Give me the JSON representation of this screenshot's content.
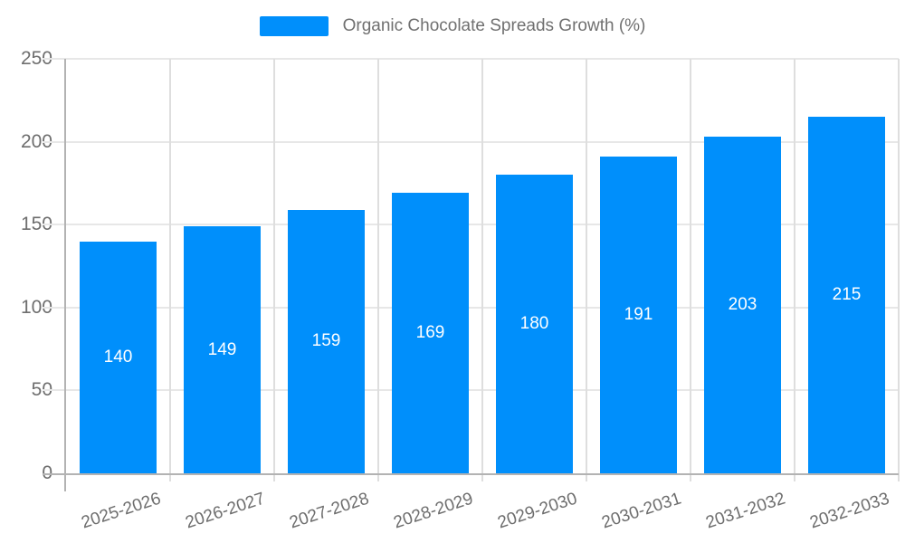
{
  "chart_data": {
    "type": "bar",
    "title": "Organic Chocolate Spreads Growth (%)",
    "categories": [
      "2025-2026",
      "2026-2027",
      "2027-2028",
      "2028-2029",
      "2029-2030",
      "2030-2031",
      "2031-2032",
      "2032-2033"
    ],
    "values": [
      140,
      149,
      159,
      169,
      180,
      191,
      203,
      215
    ],
    "xlabel": "",
    "ylabel": "",
    "ylim": [
      0,
      250
    ],
    "yticks": [
      0,
      50,
      100,
      150,
      200,
      250
    ],
    "grid": true,
    "legend_position": "top",
    "colors": {
      "bar": "#008FFB",
      "bar_value_label": "#ffffff",
      "axis_text": "#6e6e6e",
      "legend_text": "#707070",
      "gridline": "#e7e7e7",
      "axis_line": "#b3b3b3"
    }
  }
}
